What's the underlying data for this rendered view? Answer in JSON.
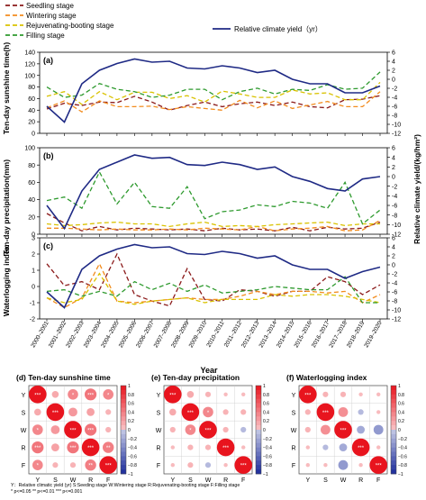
{
  "chart_data": [
    {
      "type": "line",
      "panel": "(a)",
      "ylabel_left": "Ten-day sunshine time(h)",
      "ylabel_right": "",
      "ylim_left": [
        0,
        140
      ],
      "ylim_right": [
        -12,
        6
      ],
      "left_ticks": [
        0,
        20,
        40,
        60,
        80,
        100,
        120,
        140
      ],
      "right_ticks": [
        -12,
        -10,
        -8,
        -6,
        -4,
        -2,
        0,
        2,
        4,
        6
      ],
      "series": [
        {
          "name": "Seedling stage",
          "axis": "left",
          "values": [
            42,
            52,
            48,
            54,
            53,
            64,
            54,
            40,
            48,
            54,
            46,
            51,
            54,
            48,
            54,
            46,
            44,
            58,
            59,
            65
          ]
        },
        {
          "name": "Wintering stage",
          "axis": "left",
          "values": [
            44,
            56,
            37,
            56,
            46,
            46,
            47,
            41,
            46,
            43,
            40,
            57,
            44,
            56,
            43,
            49,
            55,
            46,
            46,
            72
          ]
        },
        {
          "name": "Rejuvenating-booting stage",
          "axis": "left",
          "values": [
            64,
            72,
            50,
            72,
            58,
            71,
            71,
            60,
            65,
            54,
            73,
            68,
            62,
            62,
            75,
            68,
            70,
            58,
            58,
            88
          ]
        },
        {
          "name": "Filling stage",
          "axis": "left",
          "values": [
            80,
            62,
            66,
            86,
            76,
            72,
            62,
            66,
            76,
            76,
            58,
            72,
            78,
            68,
            76,
            74,
            84,
            76,
            78,
            106
          ]
        },
        {
          "name": "Relative climate yield（yr）",
          "axis": "right",
          "values": [
            -6,
            -9.5,
            -1,
            2,
            3.5,
            4.5,
            3.8,
            4,
            2.5,
            2.3,
            3,
            2.5,
            1.5,
            2,
            0,
            -1,
            -1,
            -3,
            -3,
            -1.5
          ]
        }
      ]
    },
    {
      "type": "line",
      "panel": "(b)",
      "ylabel_left": "Ten-day precipitation(mm)",
      "ylabel_right": "Relative climate yield/(kg/hm²)",
      "ylim_left": [
        0,
        100
      ],
      "ylim_right": [
        -12,
        6
      ],
      "left_ticks": [
        0,
        20,
        40,
        60,
        80,
        100
      ],
      "right_ticks": [
        -12,
        -10,
        -8,
        -6,
        -4,
        -2,
        0,
        2,
        4,
        6
      ],
      "series": [
        {
          "name": "Seedling stage",
          "axis": "left",
          "values": [
            24,
            13,
            4,
            9,
            5,
            7,
            6,
            5,
            6,
            4,
            7,
            5,
            6,
            4,
            8,
            4,
            8,
            6,
            7,
            14
          ]
        },
        {
          "name": "Wintering stage",
          "axis": "left",
          "values": [
            7,
            7,
            6,
            5,
            6,
            5,
            5,
            6,
            5,
            7,
            6,
            5,
            9,
            4,
            6,
            7,
            9,
            4,
            5,
            16
          ]
        },
        {
          "name": "Rejuvenating-booting stage",
          "axis": "left",
          "values": [
            12,
            10,
            11,
            13,
            14,
            12,
            12,
            9,
            12,
            14,
            9,
            10,
            9,
            11,
            12,
            13,
            14,
            10,
            12,
            12
          ]
        },
        {
          "name": "Filling stage",
          "axis": "left",
          "values": [
            39,
            43,
            30,
            72,
            35,
            60,
            32,
            30,
            55,
            18,
            26,
            28,
            34,
            32,
            38,
            36,
            30,
            60,
            12,
            28
          ]
        },
        {
          "name": "Relative climate yield（yr）",
          "axis": "right",
          "values": [
            -6,
            -10.8,
            -3,
            1.5,
            3,
            4.5,
            3.8,
            4,
            2.5,
            2.3,
            3,
            2.5,
            1.5,
            2,
            0,
            -1,
            -2.5,
            -3,
            -0.5,
            0
          ]
        }
      ]
    },
    {
      "type": "line",
      "panel": "(c)",
      "ylabel_left": "Waterlogging index",
      "ylabel_right": "",
      "ylim_left": [
        -2,
        3
      ],
      "ylim_right": [
        -12,
        6
      ],
      "left_ticks": [
        -2,
        -1,
        0,
        1,
        2,
        3
      ],
      "right_ticks": [
        -12,
        -10,
        -8,
        -6,
        -4,
        -2,
        0,
        2,
        4,
        6
      ],
      "series": [
        {
          "name": "Seedling stage",
          "axis": "left",
          "values": [
            1.4,
            0.05,
            0.3,
            -0.2,
            2.0,
            -0.5,
            -0.9,
            -1.2,
            1.1,
            -0.8,
            -0.9,
            -0.2,
            -0.3,
            -0.6,
            -0.3,
            -0.3,
            0.6,
            0.3,
            -0.5,
            0.1
          ]
        },
        {
          "name": "Wintering stage",
          "axis": "left",
          "values": [
            -0.7,
            -1.3,
            -0.7,
            1.4,
            -0.9,
            -1.0,
            -0.9,
            -0.8,
            -0.7,
            -0.8,
            -0.8,
            -0.6,
            -0.3,
            -0.5,
            -0.3,
            -0.3,
            -0.4,
            -0.3,
            -1.0,
            -0.5
          ]
        },
        {
          "name": "Rejuvenating-booting stage",
          "axis": "left",
          "values": [
            -0.7,
            -1.0,
            -0.8,
            0.8,
            -0.9,
            -1.1,
            -0.9,
            -0.8,
            -0.7,
            -1.0,
            -0.8,
            -0.8,
            -0.8,
            -0.5,
            -0.6,
            -0.5,
            -0.5,
            -0.6,
            -0.8,
            -1.0
          ]
        },
        {
          "name": "Filling stage",
          "axis": "left",
          "values": [
            -0.3,
            -0.2,
            -0.6,
            -0.3,
            -0.6,
            0.3,
            -0.2,
            0.2,
            -0.3,
            0.1,
            -0.4,
            -0.3,
            -0.2,
            0.0,
            -0.1,
            -0.2,
            -0.2,
            0.6,
            -1.0,
            -1.0
          ]
        },
        {
          "name": "Relative climate yield（yr）",
          "axis": "right",
          "values": [
            -6,
            -9.5,
            -1,
            2,
            3.5,
            4.5,
            3.8,
            4,
            2.5,
            2.3,
            3,
            2.5,
            1.5,
            2,
            0,
            -1,
            -1,
            -3,
            -1.5,
            -0.5
          ]
        }
      ]
    },
    {
      "type": "heatmap",
      "panel": "(d)",
      "title": "Ten-day sunshine time",
      "labels": [
        "Y",
        "S",
        "W",
        "R",
        "F"
      ],
      "colorbar_ticks": [
        "1",
        "0.8",
        "0.6",
        "0.4",
        "0.2",
        "0",
        "−0.2",
        "−0.4",
        "−0.6",
        "−0.8",
        "−1"
      ],
      "matrix": [
        [
          1,
          0.15,
          0.35,
          0.45,
          0.35
        ],
        [
          0.15,
          1,
          0.25,
          0.2,
          0.1
        ],
        [
          0.35,
          0.25,
          1,
          0.45,
          0.1
        ],
        [
          0.45,
          0.2,
          0.45,
          1,
          0.4
        ],
        [
          0.35,
          0.1,
          0.1,
          0.4,
          1
        ]
      ],
      "stars": [
        [
          "***",
          "",
          "*",
          "***",
          "*"
        ],
        [
          "",
          "***",
          "",
          "",
          ""
        ],
        [
          "*",
          "",
          "***",
          "***",
          ""
        ],
        [
          "***",
          "",
          "***",
          "***",
          "**"
        ],
        [
          "*",
          "",
          "",
          "**",
          "***"
        ]
      ]
    },
    {
      "type": "heatmap",
      "panel": "(e)",
      "title": "Ten-day precipitation",
      "labels": [
        "Y",
        "S",
        "W",
        "R",
        "F"
      ],
      "colorbar_ticks": [
        "1",
        "0.8",
        "0.6",
        "0.4",
        "0.2",
        "0",
        "−0.2",
        "−0.4",
        "−0.6",
        "−0.8",
        "−1"
      ],
      "matrix": [
        [
          1,
          0.15,
          0.1,
          0.05,
          0.05
        ],
        [
          0.15,
          1,
          0.35,
          0.1,
          0.1
        ],
        [
          0.1,
          0.35,
          1,
          0.1,
          -0.1
        ],
        [
          0.05,
          0.1,
          0.1,
          1,
          0.05
        ],
        [
          0.05,
          0.1,
          -0.1,
          0.05,
          1
        ]
      ],
      "stars": [
        [
          "***",
          "",
          "",
          "",
          ""
        ],
        [
          "",
          "***",
          "*",
          "",
          ""
        ],
        [
          "",
          "*",
          "***",
          "",
          ""
        ],
        [
          "",
          "",
          "",
          "***",
          ""
        ],
        [
          "",
          "",
          "",
          "",
          "***"
        ]
      ]
    },
    {
      "type": "heatmap",
      "panel": "(f)",
      "title": "Waterlogging index",
      "labels": [
        "Y",
        "S",
        "W",
        "R",
        "F"
      ],
      "colorbar_ticks": [
        "1",
        "0.8",
        "0.6",
        "0.4",
        "0.2",
        "0",
        "−0.2",
        "−0.4",
        "−0.6",
        "−0.8",
        "−1"
      ],
      "matrix": [
        [
          1,
          0.1,
          0.1,
          0.05,
          0.05
        ],
        [
          0.1,
          1,
          0.3,
          -0.1,
          0.05
        ],
        [
          0.1,
          0.3,
          1,
          -0.2,
          -0.3
        ],
        [
          0.05,
          -0.1,
          -0.2,
          1,
          0.05
        ],
        [
          0.05,
          0.05,
          -0.3,
          0.05,
          1
        ]
      ],
      "stars": [
        [
          "***",
          "",
          "",
          "",
          ""
        ],
        [
          "",
          "***",
          "",
          "",
          ""
        ],
        [
          "",
          "",
          "***",
          "",
          ""
        ],
        [
          "",
          "",
          "",
          "***",
          ""
        ],
        [
          "",
          "",
          "",
          "",
          "***"
        ]
      ]
    }
  ],
  "x_categories": [
    "2000–2001",
    "2001–2002",
    "2002–2003",
    "2003–2004",
    "2004–2005",
    "2005–2006",
    "2006–2007",
    "2007–2008",
    "2008–2009",
    "2009–2010",
    "2010–2011",
    "2011–2012",
    "2012–2013",
    "2013–2014",
    "2014–2015",
    "2015–2016",
    "2016–2017",
    "2017–2018",
    "2018–2019",
    "2019–2020"
  ],
  "x_axis_label": "Year",
  "legend": {
    "stages": [
      {
        "name": "Seedling stage",
        "color": "#8b1a1a"
      },
      {
        "name": "Wintering stage",
        "color": "#f28c1e"
      },
      {
        "name": "Rejuvenating-booting stage",
        "color": "#d9c200"
      },
      {
        "name": "Filling stage",
        "color": "#2e9a2e"
      }
    ],
    "yield": {
      "name": "Relative climate yield（yr）",
      "color": "#1f2a85"
    }
  },
  "footnote": {
    "line1": "Y：Relative climatic yield (yr)       S:Seeding stage          W:Wintering stage        R:Rejuvenating-booting stage       F:Filling stage",
    "line2": "* p<=0.05  ** p<=0.01  *** p<=0.001"
  },
  "colors": {
    "positive": "#e8141e",
    "negative": "#1a2a9a"
  }
}
